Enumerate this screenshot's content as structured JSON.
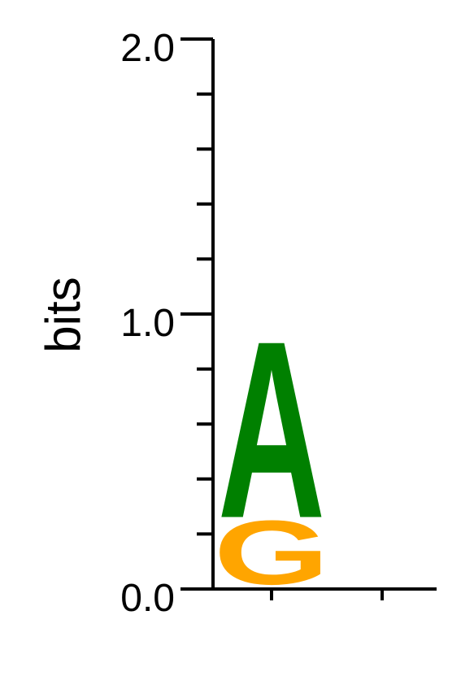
{
  "chart_data": {
    "type": "sequence_logo",
    "ylabel": "bits",
    "ylim": [
      0,
      2
    ],
    "y_ticks": [
      "0.0",
      "1.0",
      "2.0"
    ],
    "positions": [
      {
        "position": 1,
        "stack": [
          {
            "letter": "G",
            "height": 0.25,
            "color": "#FFA500"
          },
          {
            "letter": "A",
            "height": 0.67,
            "color": "#008000"
          }
        ]
      },
      {
        "position": 2,
        "stack": []
      }
    ]
  }
}
